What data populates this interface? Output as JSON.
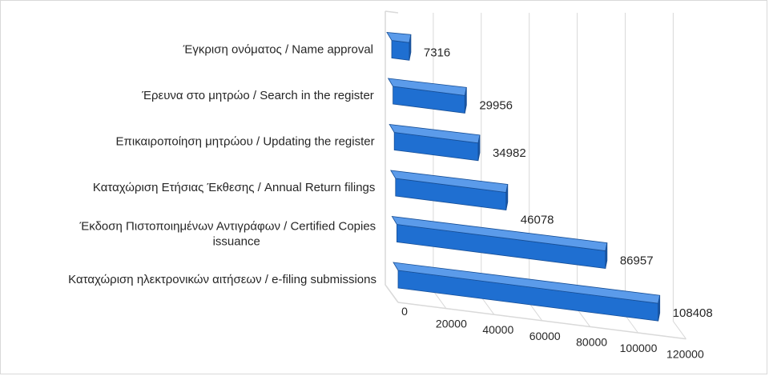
{
  "chart_data": {
    "type": "bar",
    "orientation": "horizontal",
    "style": "3d",
    "categories": [
      "Καταχώριση ηλεκτρονικών αιτήσεων / e-filing submissions",
      "Έκδοση Πιστοποιημένων Αντιγράφων / Certified Copies issuance",
      "Καταχώριση Ετήσιας Έκθεσης / Annual Return filings",
      "Επικαιροποίηση μητρώου / Updating the register",
      "Έρευνα στο μητρώο / Search in the register",
      "Έγκριση ονόματος / Name approval"
    ],
    "category_lines": [
      [
        "Καταχώριση ηλεκτρονικών αιτήσεων / e-filing submissions"
      ],
      [
        "Έκδοση Πιστοποιημένων Αντιγράφων / Certified Copies",
        "issuance"
      ],
      [
        "Καταχώριση Ετήσιας Έκθεσης / Annual Return filings"
      ],
      [
        "Επικαιροποίηση μητρώου / Updating the register"
      ],
      [
        "Έρευνα στο μητρώο / Search in the register"
      ],
      [
        "Έγκριση ονόματος / Name approval"
      ]
    ],
    "values": [
      108408,
      86957,
      46078,
      34982,
      29956,
      7316
    ],
    "value_labels": [
      "108408",
      "86957",
      "46078",
      "34982",
      "29956",
      "7316"
    ],
    "x_ticks": [
      0,
      20000,
      40000,
      60000,
      80000,
      100000,
      120000
    ],
    "x_tick_labels": [
      "0",
      "20000",
      "40000",
      "60000",
      "80000",
      "100000",
      "120000"
    ],
    "xlim": [
      0,
      120000
    ],
    "title": "",
    "xlabel": "",
    "ylabel": "",
    "grid": true,
    "legend": "none",
    "colors": {
      "bar_front": "#1f6fd1",
      "bar_top": "#5b9bea",
      "bar_end": "#1a55a3",
      "grid": "#d9d9d9",
      "text": "#262626"
    }
  }
}
